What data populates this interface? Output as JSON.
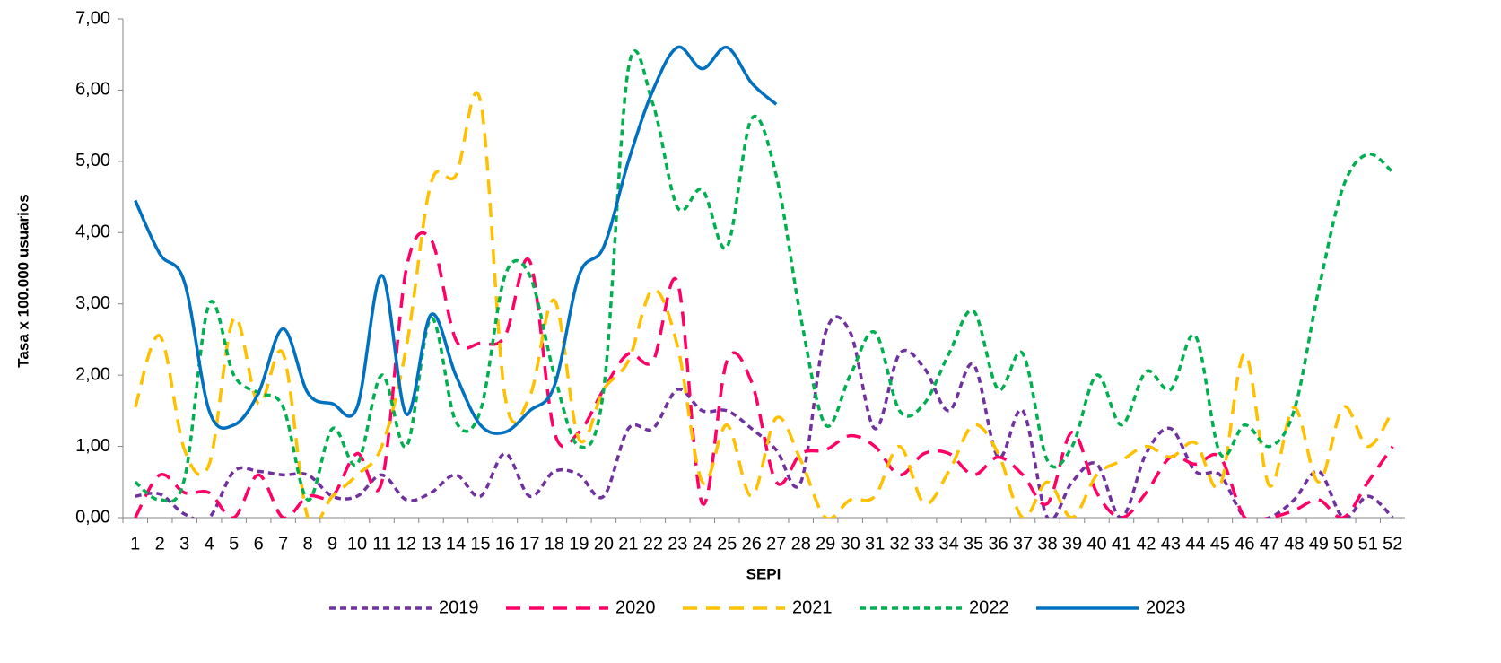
{
  "chart_data": {
    "type": "line",
    "xlabel": "SEPI",
    "ylabel": "Tasa x 100.000 usuarios",
    "categories": [
      "1",
      "2",
      "3",
      "4",
      "5",
      "6",
      "7",
      "8",
      "9",
      "10",
      "11",
      "12",
      "13",
      "14",
      "15",
      "16",
      "17",
      "18",
      "19",
      "20",
      "21",
      "22",
      "23",
      "24",
      "25",
      "26",
      "27",
      "28",
      "29",
      "30",
      "31",
      "32",
      "33",
      "34",
      "35",
      "36",
      "37",
      "38",
      "39",
      "40",
      "41",
      "42",
      "43",
      "44",
      "45",
      "46",
      "47",
      "48",
      "49",
      "50",
      "51",
      "52"
    ],
    "ylim": [
      0,
      7
    ],
    "yticks": [
      {
        "value": 0,
        "label": "0,00"
      },
      {
        "value": 1,
        "label": "1,00"
      },
      {
        "value": 2,
        "label": "2,00"
      },
      {
        "value": 3,
        "label": "3,00"
      },
      {
        "value": 4,
        "label": "4,00"
      },
      {
        "value": 5,
        "label": "5,00"
      },
      {
        "value": 6,
        "label": "6,00"
      },
      {
        "value": 7,
        "label": "7,00"
      }
    ],
    "grid": false,
    "smooth": true,
    "legend": "bottom",
    "series": [
      {
        "name": "2019",
        "color": "#7030a0",
        "dash": "7,5",
        "values": [
          0.3,
          0.33,
          0.05,
          0.0,
          0.65,
          0.65,
          0.6,
          0.6,
          0.3,
          0.3,
          0.6,
          0.25,
          0.35,
          0.6,
          0.3,
          0.9,
          0.3,
          0.65,
          0.6,
          0.3,
          1.25,
          1.25,
          1.8,
          1.5,
          1.5,
          1.25,
          0.95,
          0.5,
          2.6,
          2.6,
          1.25,
          2.3,
          2.1,
          1.5,
          2.15,
          0.85,
          1.5,
          0.0,
          0.5,
          0.75,
          0.0,
          0.9,
          1.25,
          0.65,
          0.6,
          0.0,
          0.0,
          0.25,
          0.65,
          0.0,
          0.3,
          0.0
        ]
      },
      {
        "name": "2020",
        "color": "#ff0066",
        "dash": "16,10",
        "values": [
          0.0,
          0.6,
          0.35,
          0.35,
          0.0,
          0.6,
          0.0,
          0.3,
          0.3,
          0.9,
          0.5,
          3.5,
          3.9,
          2.5,
          2.45,
          2.55,
          3.6,
          1.2,
          1.2,
          1.8,
          2.3,
          2.2,
          3.3,
          0.2,
          2.2,
          1.9,
          0.5,
          0.9,
          0.95,
          1.15,
          1.0,
          0.6,
          0.9,
          0.9,
          0.6,
          0.85,
          0.6,
          0.2,
          1.2,
          0.35,
          0.0,
          0.35,
          0.85,
          0.75,
          0.85,
          0.0,
          0.0,
          0.1,
          0.25,
          0.0,
          0.5,
          1.0
        ]
      },
      {
        "name": "2021",
        "color": "#ffc000",
        "dash": "16,10",
        "values": [
          1.55,
          2.55,
          0.95,
          0.75,
          2.8,
          1.6,
          2.3,
          0.0,
          0.3,
          0.6,
          1.0,
          2.4,
          4.7,
          4.8,
          5.85,
          1.7,
          1.7,
          3.05,
          1.1,
          1.8,
          2.2,
          3.2,
          2.4,
          0.5,
          1.3,
          0.3,
          1.4,
          0.8,
          0.0,
          0.25,
          0.3,
          1.0,
          0.2,
          0.65,
          1.3,
          0.9,
          0.0,
          0.5,
          0.0,
          0.6,
          0.8,
          1.0,
          0.85,
          1.05,
          0.45,
          2.3,
          0.45,
          1.55,
          0.5,
          1.55,
          1.0,
          1.5
        ]
      },
      {
        "name": "2022",
        "color": "#00b050",
        "dash": "7,5",
        "values": [
          0.5,
          0.25,
          0.55,
          3.0,
          2.0,
          1.75,
          1.55,
          0.25,
          1.25,
          0.75,
          2.0,
          1.0,
          2.8,
          1.35,
          1.5,
          3.4,
          3.4,
          2.0,
          1.0,
          1.8,
          6.3,
          5.8,
          4.35,
          4.6,
          3.8,
          5.6,
          4.8,
          2.8,
          1.3,
          2.0,
          2.6,
          1.5,
          1.6,
          2.3,
          2.9,
          1.8,
          2.3,
          0.8,
          1.0,
          2.0,
          1.3,
          2.05,
          1.8,
          2.55,
          0.9,
          1.3,
          1.0,
          1.5,
          3.2,
          4.65,
          5.1,
          4.85
        ]
      },
      {
        "name": "2023",
        "color": "#0070c0",
        "dash": "none",
        "values": [
          4.45,
          3.7,
          3.3,
          1.5,
          1.3,
          1.75,
          2.65,
          1.75,
          1.6,
          1.55,
          3.4,
          1.45,
          2.85,
          2.0,
          1.3,
          1.2,
          1.5,
          1.85,
          3.4,
          3.8,
          5.0,
          6.0,
          6.6,
          6.3,
          6.6,
          6.1,
          5.8,
          null,
          null,
          null,
          null,
          null,
          null,
          null,
          null,
          null,
          null,
          null,
          null,
          null,
          null,
          null,
          null,
          null,
          null,
          null,
          null,
          null,
          null,
          null,
          null,
          null
        ]
      }
    ]
  }
}
